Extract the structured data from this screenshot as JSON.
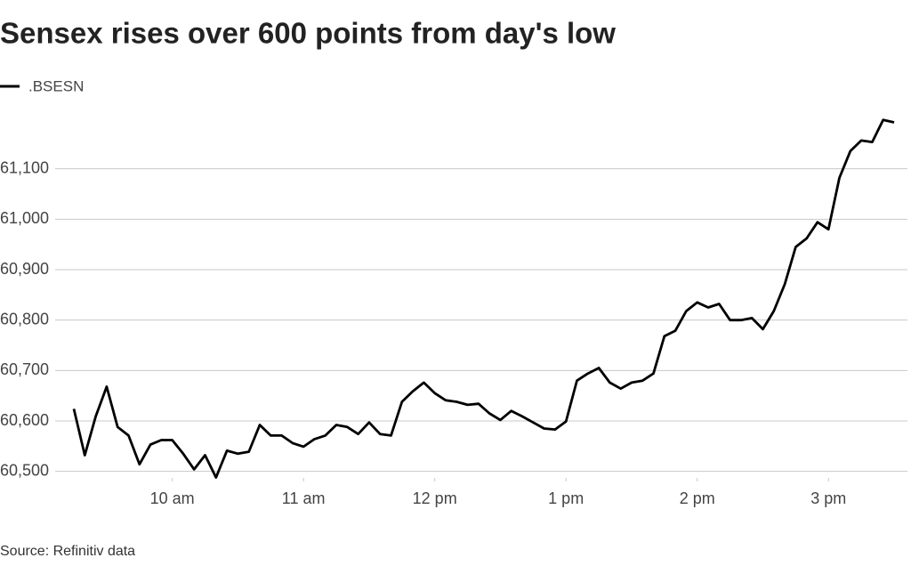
{
  "chart_data": {
    "type": "line",
    "title": "Sensex rises over 600 points from day's low",
    "source": "Source: Refinitiv data",
    "x": [
      555,
      560,
      565,
      570,
      575,
      580,
      585,
      590,
      595,
      600,
      605,
      610,
      615,
      620,
      625,
      630,
      635,
      640,
      645,
      650,
      655,
      660,
      665,
      670,
      675,
      680,
      685,
      690,
      695,
      700,
      705,
      710,
      715,
      720,
      725,
      730,
      735,
      740,
      745,
      750,
      755,
      760,
      765,
      770,
      775,
      780,
      785,
      790,
      795,
      800,
      805,
      810,
      815,
      820,
      825,
      830,
      835,
      840,
      845,
      850,
      855,
      860,
      865,
      870,
      875,
      880,
      885,
      890,
      895,
      900,
      905,
      910,
      915,
      920,
      925,
      930
    ],
    "series": [
      {
        "name": ".BSESN",
        "color": "#000000",
        "values": [
          60624,
          60532,
          60609,
          60668,
          60588,
          60571,
          60514,
          60553,
          60562,
          60562,
          60535,
          60504,
          60532,
          60488,
          60541,
          60535,
          60539,
          60592,
          60571,
          60571,
          60556,
          60549,
          60564,
          60571,
          60592,
          60588,
          60574,
          60597,
          60574,
          60571,
          60638,
          60659,
          60676,
          60655,
          60641,
          60638,
          60632,
          60634,
          60615,
          60602,
          60620,
          60609,
          60597,
          60585,
          60583,
          60599,
          60680,
          60694,
          60705,
          60676,
          60664,
          60676,
          60680,
          60694,
          60768,
          60779,
          60818,
          60835,
          60825,
          60832,
          60800,
          60800,
          60804,
          60782,
          60818,
          60871,
          60945,
          60962,
          60994,
          60980,
          61082,
          61135,
          61156,
          61153,
          61197,
          61192
        ]
      }
    ],
    "xlim": [
      555,
      930
    ],
    "xticks": [
      {
        "value": 600,
        "label": "10 am"
      },
      {
        "value": 660,
        "label": "11 am"
      },
      {
        "value": 720,
        "label": "12 pm"
      },
      {
        "value": 780,
        "label": "1 pm"
      },
      {
        "value": 840,
        "label": "2 pm"
      },
      {
        "value": 900,
        "label": "3 pm"
      }
    ],
    "ylim": [
      60480,
      61230
    ],
    "yticks": [
      {
        "value": 60500,
        "label": "60,500"
      },
      {
        "value": 60600,
        "label": "60,600"
      },
      {
        "value": 60700,
        "label": "60,700"
      },
      {
        "value": 60800,
        "label": "60,800"
      },
      {
        "value": 60900,
        "label": "60,900"
      },
      {
        "value": 61000,
        "label": "61,000"
      },
      {
        "value": 61100,
        "label": "61,100"
      }
    ],
    "grid": true
  }
}
